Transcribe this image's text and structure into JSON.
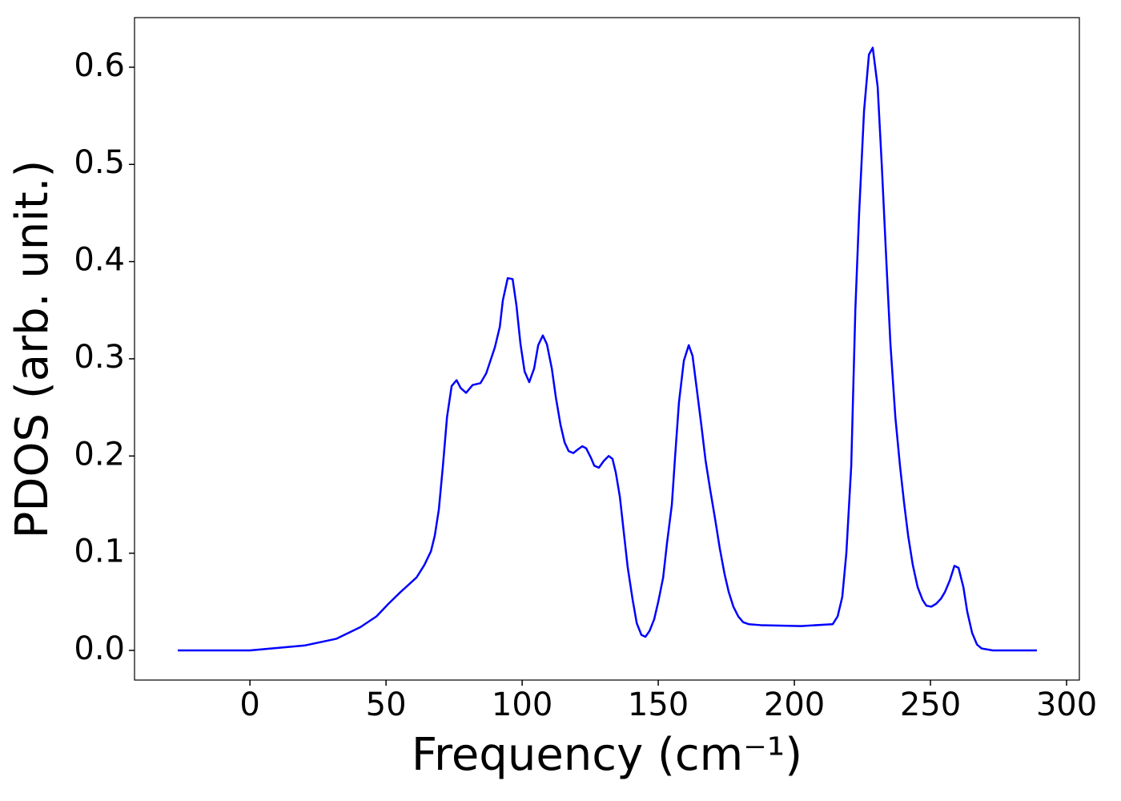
{
  "chart_data": {
    "type": "line",
    "x_label": "Frequency (cm⁻¹)",
    "y_label": "PDOS (arb. unit.)",
    "color": "#0000ff",
    "x": [
      -26.5,
      0,
      20,
      31.8,
      40.6,
      46.5,
      50.9,
      55.3,
      61.2,
      64.1,
      66.5,
      67.9,
      69.4,
      70.9,
      72.4,
      74.1,
      75.9,
      77.4,
      79.4,
      81.8,
      84.7,
      86.8,
      90,
      91.8,
      92.9,
      94.7,
      96.5,
      97.9,
      99.4,
      100.9,
      102.6,
      104.4,
      105.9,
      107.6,
      109.1,
      110.9,
      112.4,
      114.1,
      115.6,
      117.1,
      118.8,
      120.6,
      122.1,
      123.5,
      125.3,
      126.5,
      128.2,
      130,
      131.8,
      133.2,
      134.4,
      135.9,
      137.4,
      138.8,
      140.6,
      142.1,
      143.8,
      145.3,
      146.8,
      148.5,
      150,
      151.8,
      153.2,
      155,
      156.2,
      157.6,
      159.4,
      161.2,
      162.6,
      164.1,
      165.9,
      167.4,
      169.1,
      170.9,
      172.6,
      174.4,
      175.9,
      177.6,
      179.4,
      181.2,
      183.2,
      187.6,
      202.4,
      214.1,
      215.9,
      217.6,
      219.1,
      220.9,
      222.4,
      223.8,
      225.6,
      227.4,
      228.8,
      230.6,
      232.1,
      233.8,
      235.3,
      237.1,
      238.8,
      240.3,
      241.8,
      243.5,
      245.3,
      247.1,
      248.5,
      250.3,
      252.1,
      253.8,
      255.3,
      257.1,
      258.8,
      260.3,
      262.1,
      263.5,
      265.3,
      267.1,
      268.8,
      272.9,
      289.1
    ],
    "values": [
      0,
      0,
      0.005,
      0.012,
      0.024,
      0.035,
      0.048,
      0.06,
      0.075,
      0.088,
      0.102,
      0.118,
      0.145,
      0.19,
      0.24,
      0.272,
      0.278,
      0.27,
      0.265,
      0.273,
      0.275,
      0.285,
      0.312,
      0.333,
      0.36,
      0.383,
      0.382,
      0.355,
      0.315,
      0.287,
      0.276,
      0.29,
      0.314,
      0.324,
      0.315,
      0.29,
      0.26,
      0.232,
      0.214,
      0.205,
      0.203,
      0.207,
      0.21,
      0.208,
      0.198,
      0.19,
      0.188,
      0.195,
      0.2,
      0.197,
      0.183,
      0.158,
      0.12,
      0.085,
      0.052,
      0.028,
      0.016,
      0.014,
      0.02,
      0.032,
      0.05,
      0.075,
      0.11,
      0.15,
      0.2,
      0.255,
      0.298,
      0.314,
      0.303,
      0.27,
      0.23,
      0.195,
      0.165,
      0.135,
      0.105,
      0.078,
      0.06,
      0.045,
      0.035,
      0.029,
      0.027,
      0.026,
      0.025,
      0.027,
      0.035,
      0.055,
      0.1,
      0.19,
      0.35,
      0.45,
      0.555,
      0.613,
      0.62,
      0.58,
      0.5,
      0.4,
      0.315,
      0.24,
      0.19,
      0.152,
      0.118,
      0.088,
      0.065,
      0.052,
      0.046,
      0.045,
      0.048,
      0.053,
      0.06,
      0.072,
      0.087,
      0.085,
      0.065,
      0.04,
      0.018,
      0.006,
      0.002,
      0,
      0
    ],
    "xlim": [
      -42.4,
      304.7
    ],
    "ylim": [
      -0.0305,
      0.651
    ],
    "xticks": [
      0,
      50,
      100,
      150,
      200,
      250,
      300
    ],
    "yticks": [
      {
        "value": 0,
        "label": "0.0"
      },
      0.1,
      0.2,
      0.3,
      0.4,
      0.5,
      0.6
    ],
    "grid": false
  }
}
